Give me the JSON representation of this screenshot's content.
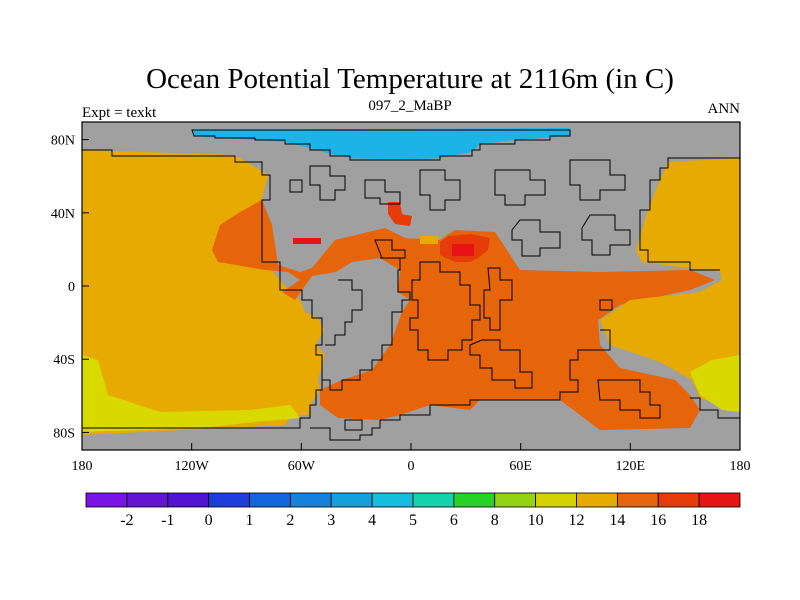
{
  "title": "Ocean Potential Temperature at 2116m (in C)",
  "left_label": "Expt = texkt",
  "center_label": "097_2_MaBP",
  "right_label": "ANN",
  "lat_ticks": [
    "80N",
    "40N",
    "0",
    "40S",
    "80S"
  ],
  "lon_ticks": [
    "180",
    "120W",
    "60W",
    "0",
    "60E",
    "120E",
    "180"
  ],
  "colors": {
    "land": "#a0a0a0",
    "sea_ice_polar": "#1cb4e6",
    "temp_12_14": "#e6aa00",
    "temp_10_12": "#d9d900",
    "temp_14_16": "#e6640a",
    "temp_16_18": "#e63c0a",
    "temp_gt_18": "#e61414"
  },
  "colorbar": {
    "labels": [
      "-2",
      "-1",
      "0",
      "1",
      "2",
      "3",
      "4",
      "5",
      "6",
      "8",
      "10",
      "12",
      "14",
      "16",
      "18"
    ],
    "colors": [
      "#7814e6",
      "#6414d2",
      "#5014d2",
      "#1e3cdc",
      "#1464dc",
      "#1482dc",
      "#14a0dc",
      "#14bedc",
      "#14d2aa",
      "#28d228",
      "#96d214",
      "#d2d200",
      "#e6aa00",
      "#e6640a",
      "#e63c0a",
      "#e61414"
    ]
  }
}
